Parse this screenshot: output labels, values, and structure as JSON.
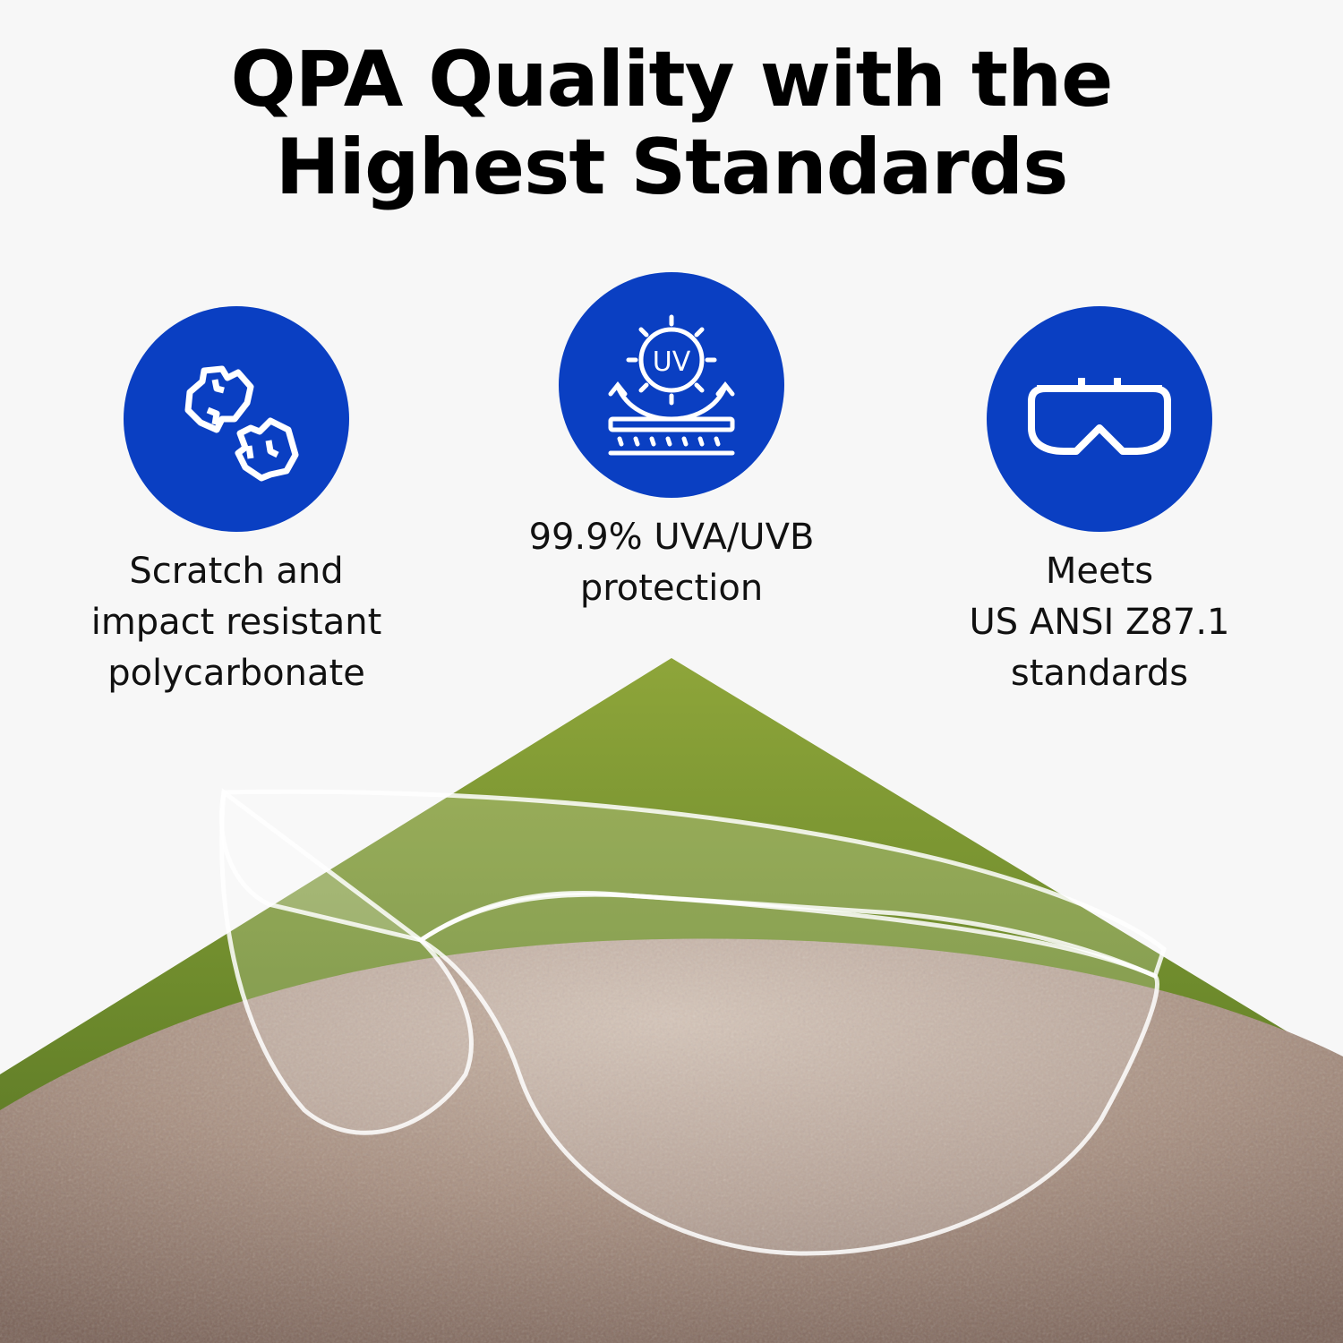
{
  "title": {
    "line1": "QPA Quality with the",
    "line2": "Highest Standards"
  },
  "colors": {
    "accent_blue": "#0a3fc2",
    "background": "#f7f7f7",
    "grass": "#6f8a2a",
    "rock": "#a88f80"
  },
  "features": [
    {
      "icon": "rocks-icon",
      "lines": [
        "Scratch and",
        "impact resistant",
        "polycarbonate"
      ]
    },
    {
      "icon": "uv-sun-icon",
      "icon_text": "UV",
      "lines": [
        "99.9% UVA/UVB",
        "protection"
      ]
    },
    {
      "icon": "goggles-icon",
      "lines": [
        "Meets",
        "US ANSI Z87.1",
        "standards"
      ]
    }
  ]
}
